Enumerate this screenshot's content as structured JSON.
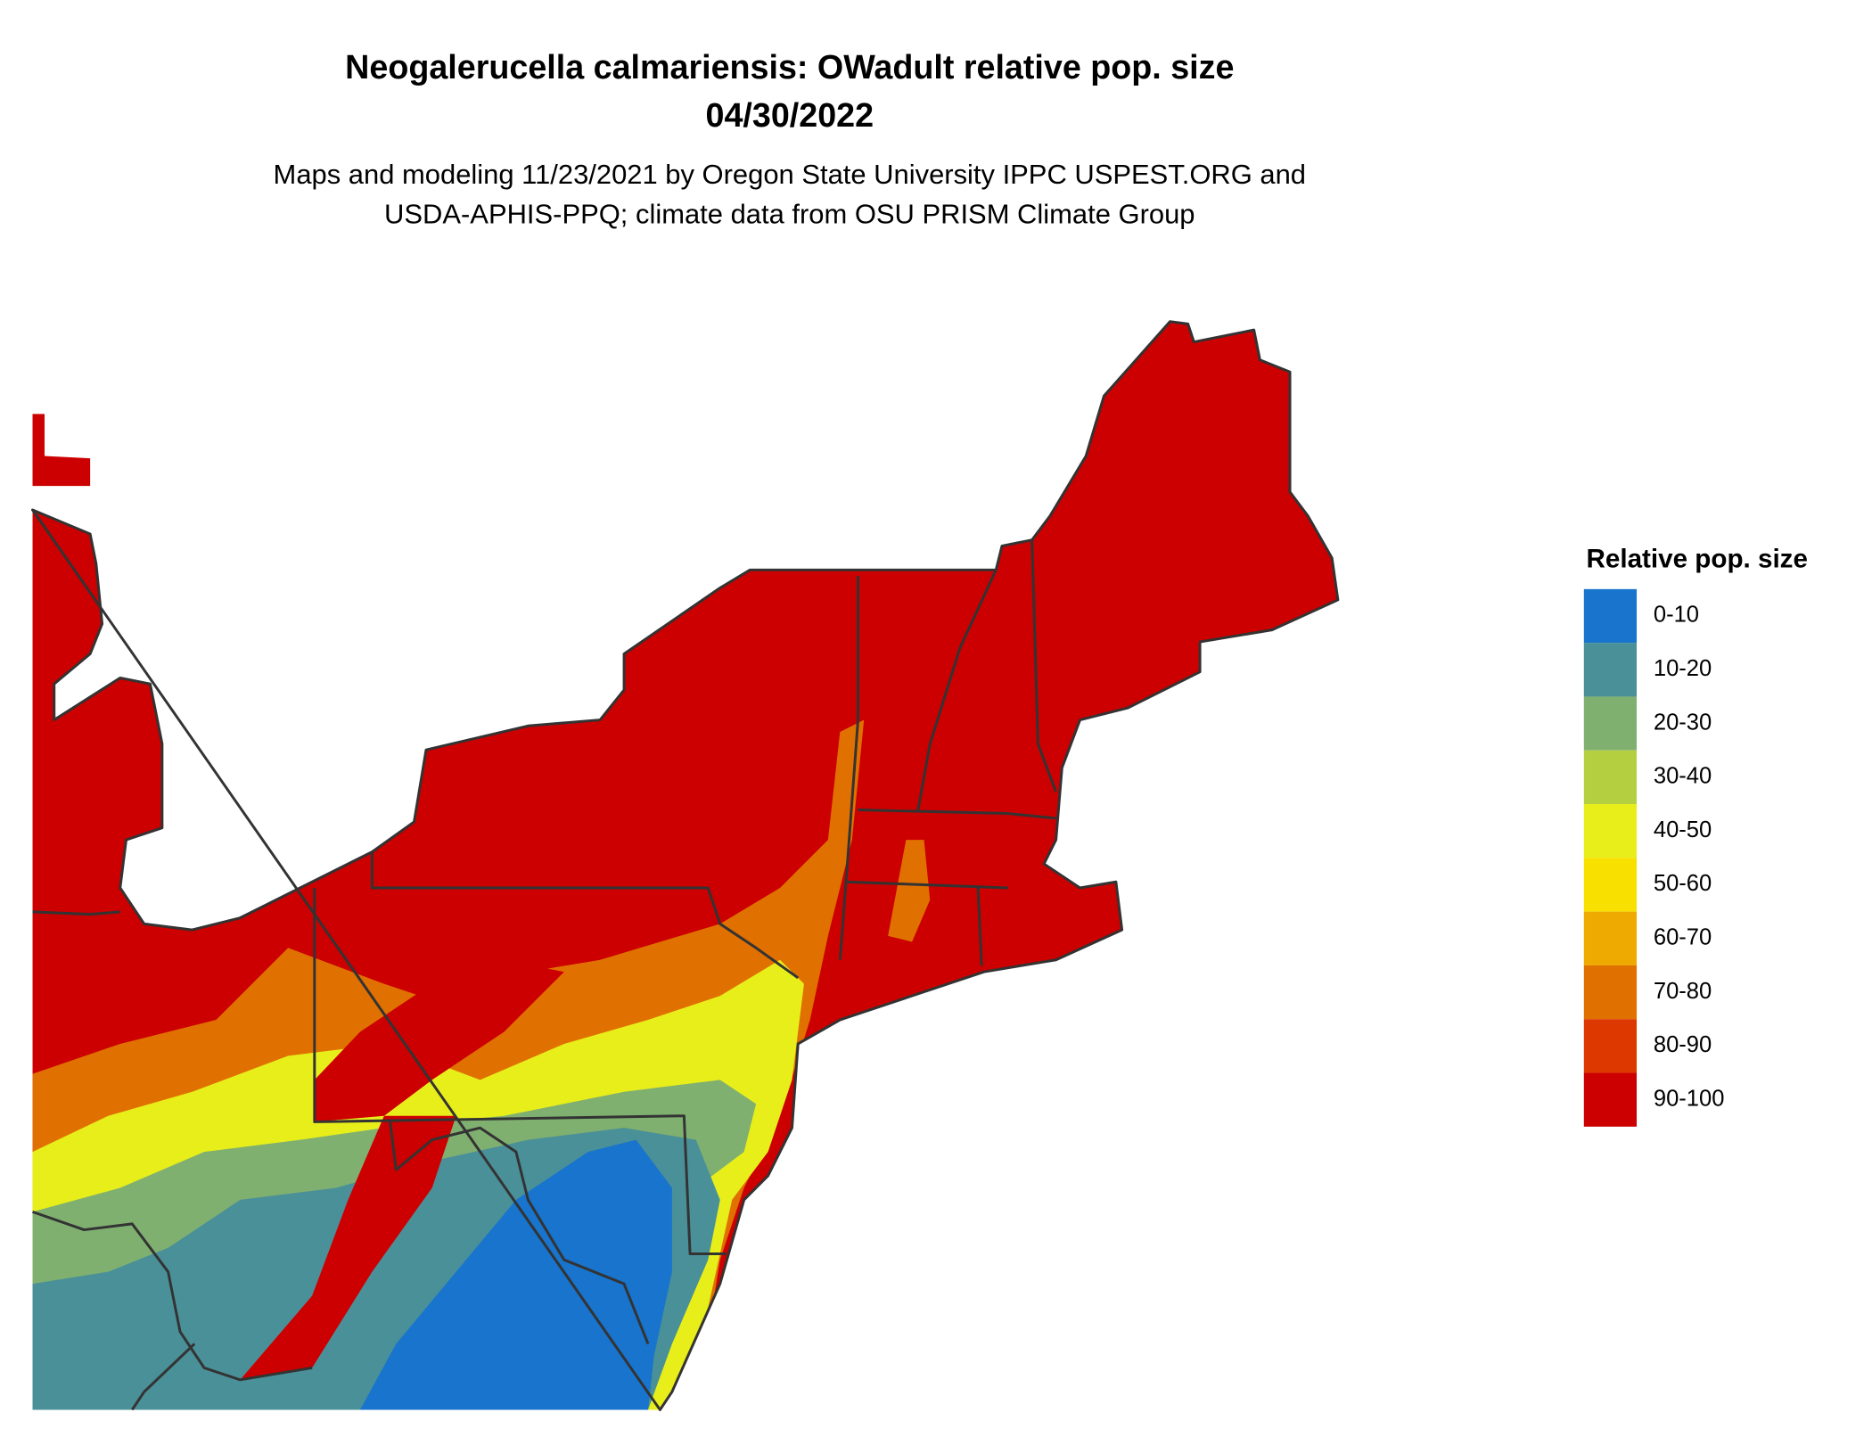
{
  "header": {
    "title": "Neogalerucella calmariensis: OWadult relative pop. size",
    "date": "04/30/2022",
    "subtitle_lines": [
      "Maps and modeling 11/23/2021 by Oregon State University IPPC USPEST.ORG and",
      "USDA-APHIS-PPQ; climate data from OSU PRISM Climate Group"
    ]
  },
  "legend": {
    "title": "Relative pop. size",
    "items": [
      {
        "label": "0-10",
        "color": "#1874CD"
      },
      {
        "label": "10-20",
        "color": "#4A9098"
      },
      {
        "label": "20-30",
        "color": "#80B070"
      },
      {
        "label": "30-40",
        "color": "#B4D040"
      },
      {
        "label": "40-50",
        "color": "#E8EE1A"
      },
      {
        "label": "50-60",
        "color": "#F8E000"
      },
      {
        "label": "60-70",
        "color": "#EEAA00"
      },
      {
        "label": "70-80",
        "color": "#E07000"
      },
      {
        "label": "80-90",
        "color": "#DD3800"
      },
      {
        "label": "90-100",
        "color": "#CC0000"
      }
    ]
  }
}
